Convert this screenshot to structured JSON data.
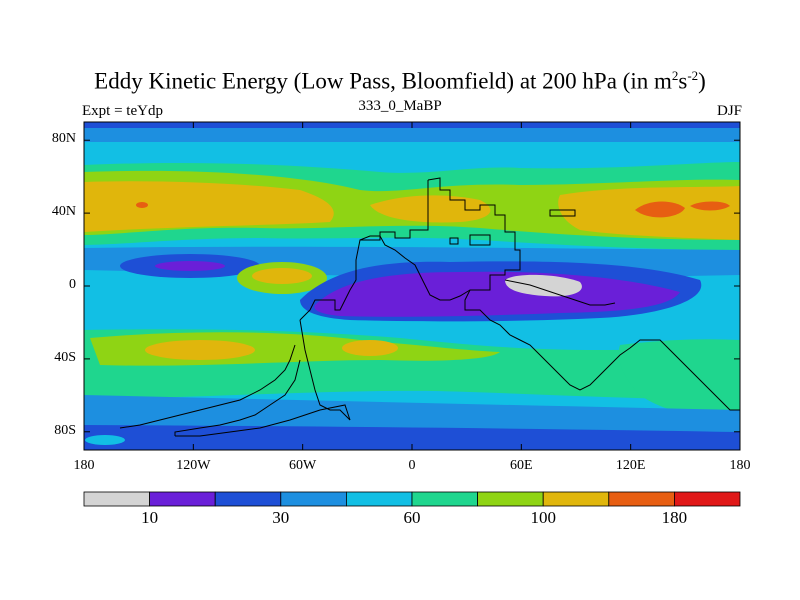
{
  "title": {
    "main": "Eddy Kinetic Energy (Low Pass, Bloomfield) at 200 hPa (in m",
    "sup1": "2",
    "mid": "s",
    "sup2": "-2",
    "end": ")"
  },
  "left_label": "Expt = teYdp",
  "center_label": "333_0_MaBP",
  "right_label": "DJF",
  "map": {
    "lon_range": [
      -180,
      180
    ],
    "lat_range": [
      -90,
      90
    ],
    "lon_ticks": [
      {
        "value": -180,
        "label": "180"
      },
      {
        "value": -120,
        "label": "120W"
      },
      {
        "value": -60,
        "label": "60W"
      },
      {
        "value": 0,
        "label": "0"
      },
      {
        "value": 60,
        "label": "60E"
      },
      {
        "value": 120,
        "label": "120E"
      },
      {
        "value": 180,
        "label": "180"
      }
    ],
    "lat_ticks": [
      {
        "value": 80,
        "label": "80N"
      },
      {
        "value": 40,
        "label": "40N"
      },
      {
        "value": 0,
        "label": "0"
      },
      {
        "value": -40,
        "label": "40S"
      },
      {
        "value": -80,
        "label": "80S"
      }
    ]
  },
  "colorbar": {
    "colors": [
      "#d4d4d4",
      "#6a1fd8",
      "#1e4fd6",
      "#1d8fe0",
      "#12bfe4",
      "#1fd68e",
      "#8fd414",
      "#e0b60c",
      "#e75e12",
      "#e01818"
    ],
    "labels": [
      {
        "index": 1,
        "text": "10"
      },
      {
        "index": 3,
        "text": "30"
      },
      {
        "index": 5,
        "text": "60"
      },
      {
        "index": 7,
        "text": "100"
      },
      {
        "index": 9,
        "text": "180"
      }
    ]
  }
}
